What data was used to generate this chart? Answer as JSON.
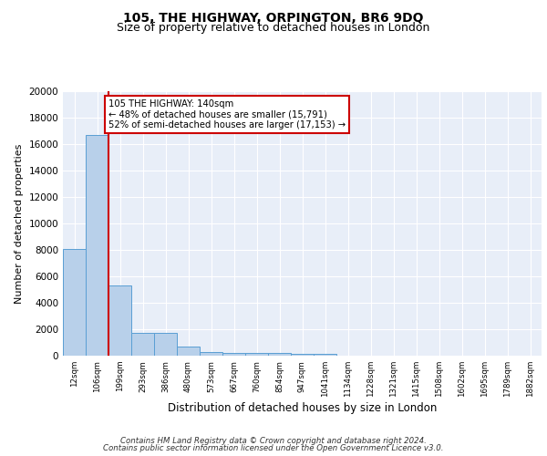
{
  "title": "105, THE HIGHWAY, ORPINGTON, BR6 9DQ",
  "subtitle": "Size of property relative to detached houses in London",
  "xlabel": "Distribution of detached houses by size in London",
  "ylabel": "Number of detached properties",
  "bin_labels": [
    "12sqm",
    "106sqm",
    "199sqm",
    "293sqm",
    "386sqm",
    "480sqm",
    "573sqm",
    "667sqm",
    "760sqm",
    "854sqm",
    "947sqm",
    "1041sqm",
    "1134sqm",
    "1228sqm",
    "1321sqm",
    "1415sqm",
    "1508sqm",
    "1602sqm",
    "1695sqm",
    "1789sqm",
    "1882sqm"
  ],
  "bar_heights": [
    8100,
    16700,
    5300,
    1750,
    1750,
    700,
    300,
    230,
    200,
    175,
    150,
    130,
    0,
    0,
    0,
    0,
    0,
    0,
    0,
    0,
    0
  ],
  "bar_color": "#b8d0ea",
  "bar_edge_color": "#5a9fd4",
  "annotation_text": "105 THE HIGHWAY: 140sqm\n← 48% of detached houses are smaller (15,791)\n52% of semi-detached houses are larger (17,153) →",
  "annotation_box_color": "#ffffff",
  "annotation_box_edge": "#cc0000",
  "red_line_color": "#cc0000",
  "ylim": [
    0,
    20000
  ],
  "yticks": [
    0,
    2000,
    4000,
    6000,
    8000,
    10000,
    12000,
    14000,
    16000,
    18000,
    20000
  ],
  "background_color": "#e8eef8",
  "footer_line1": "Contains HM Land Registry data © Crown copyright and database right 2024.",
  "footer_line2": "Contains public sector information licensed under the Open Government Licence v3.0.",
  "title_fontsize": 10,
  "subtitle_fontsize": 9,
  "ylabel_fontsize": 8,
  "xlabel_fontsize": 8.5
}
